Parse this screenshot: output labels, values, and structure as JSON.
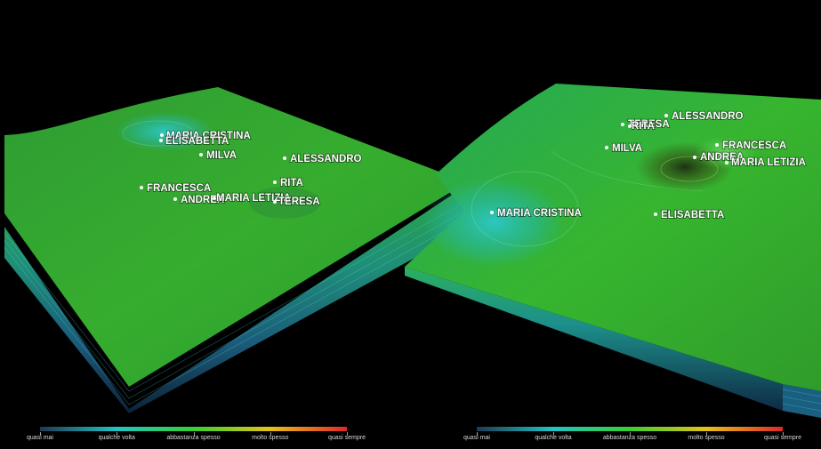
{
  "left_map": {
    "names": [
      "MARIA CRISTINA",
      "ELISABETTA",
      "MILVA",
      "ALESSANDRO",
      "FRANCESCA",
      "RITA",
      "ANDREA",
      "MARIA LETIZIA",
      "TERESA"
    ]
  },
  "right_map": {
    "names": [
      "TERESA",
      "RITA",
      "ALESSANDRO",
      "MILVA",
      "FRANCESCA",
      "ANDREA",
      "MARIA LETIZIA",
      "MARIA CRISTINA",
      "ELISABETTA"
    ]
  },
  "legend": {
    "labels": [
      "quasi mai",
      "qualche volta",
      "abbastanza spesso",
      "molto spesso",
      "quasi sempre"
    ],
    "colors": [
      "#1e3a55",
      "#22c4c4",
      "#38d030",
      "#e6c21a",
      "#e02828"
    ]
  }
}
